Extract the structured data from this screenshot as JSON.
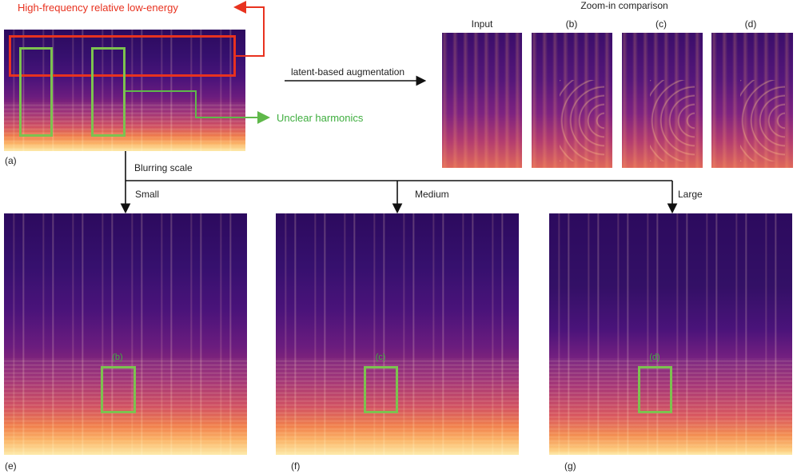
{
  "annotations": {
    "high_freq": "High-frequency relative low-energy",
    "unclear_harmonics": "Unclear harmonics",
    "latent_aug": "latent-based augmentation",
    "zoom_title": "Zoom-in comparison",
    "blurring_scale": "Blurring scale"
  },
  "zoom_labels": [
    "Input",
    "(b)",
    "(c)",
    "(d)"
  ],
  "scales": [
    "Small",
    "Medium",
    "Large"
  ],
  "panel_labels": {
    "a": "(a)",
    "e": "(e)",
    "f": "(f)",
    "g": "(g)"
  },
  "box_labels": [
    "(b)",
    "(c)",
    "(d)"
  ],
  "colors": {
    "red": "#e8321f",
    "green": "#7cc24f",
    "arrow": "#111111"
  }
}
